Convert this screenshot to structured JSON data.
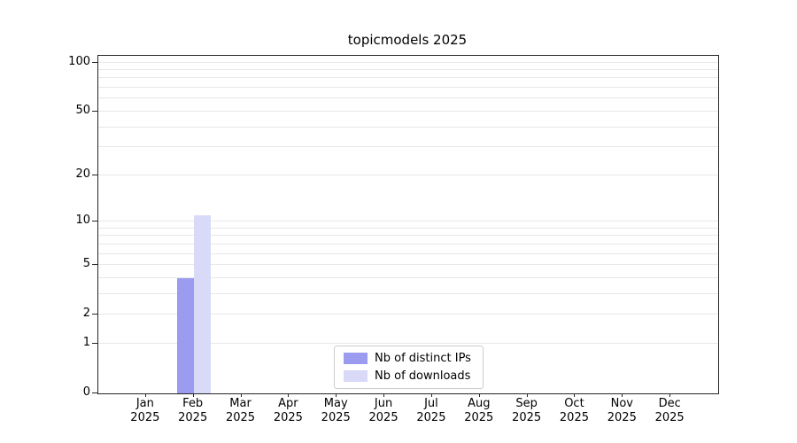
{
  "title": "topicmodels 2025",
  "chart_data": {
    "type": "bar",
    "title": "topicmodels 2025",
    "categories": [
      "Jan",
      "Feb",
      "Mar",
      "Apr",
      "May",
      "Jun",
      "Jul",
      "Aug",
      "Sep",
      "Oct",
      "Nov",
      "Dec"
    ],
    "x_labels": [
      [
        "Jan",
        "2025"
      ],
      [
        "Feb",
        "2025"
      ],
      [
        "Mar",
        "2025"
      ],
      [
        "Apr",
        "2025"
      ],
      [
        "May",
        "2025"
      ],
      [
        "Jun",
        "2025"
      ],
      [
        "Jul",
        "2025"
      ],
      [
        "Aug",
        "2025"
      ],
      [
        "Sep",
        "2025"
      ],
      [
        "Oct",
        "2025"
      ],
      [
        "Nov",
        "2025"
      ],
      [
        "Dec",
        "2025"
      ]
    ],
    "series": [
      {
        "name": "Nb of distinct IPs",
        "color": "#9b9bf0",
        "values": [
          0,
          4,
          0,
          0,
          0,
          0,
          0,
          0,
          0,
          0,
          0,
          0
        ]
      },
      {
        "name": "Nb of downloads",
        "color": "#d9d9f8",
        "values": [
          0,
          11,
          0,
          0,
          0,
          0,
          0,
          0,
          0,
          0,
          0,
          0
        ]
      }
    ],
    "scale": "log1p",
    "ylim": [
      0,
      110
    ],
    "y_top": 110,
    "y_ticks": [
      0,
      1,
      2,
      5,
      10,
      20,
      50,
      100
    ],
    "grid_values": [
      1,
      2,
      3,
      4,
      5,
      6,
      7,
      8,
      9,
      10,
      20,
      30,
      40,
      50,
      60,
      70,
      80,
      90,
      100
    ],
    "grid": "on",
    "legend_position": "bottom-center-inside",
    "colors": {
      "grid": "#e8e8e8",
      "axis": "#262626",
      "background": "#ffffff"
    }
  }
}
